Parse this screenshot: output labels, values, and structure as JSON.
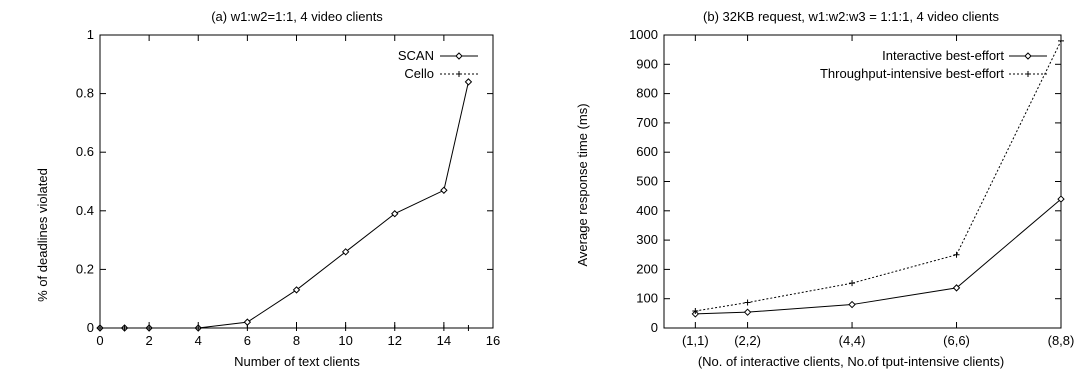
{
  "chart_data": [
    {
      "type": "line",
      "title": "(a) w1:w2=1:1, 4 video clients",
      "xlabel": "Number of text clients",
      "ylabel": "% of deadlines violated",
      "xlim": [
        0,
        16
      ],
      "ylim": [
        0,
        1
      ],
      "xticks": [
        "0",
        "2",
        "4",
        "6",
        "8",
        "10",
        "12",
        "14",
        "16"
      ],
      "yticks": [
        "0",
        "0.2",
        "0.4",
        "0.6",
        "0.8",
        "1"
      ],
      "legend_position": "top-right",
      "grid": false,
      "series": [
        {
          "name": "SCAN",
          "marker": "diamond",
          "line": "solid",
          "x": [
            0,
            1,
            2,
            4,
            6,
            8,
            10,
            12,
            14,
            15
          ],
          "y": [
            0,
            0,
            0,
            0,
            0.02,
            0.13,
            0.26,
            0.39,
            0.47,
            0.84
          ]
        },
        {
          "name": "Cello",
          "marker": "plus",
          "line": "dotted",
          "x": [
            0,
            1,
            2,
            4,
            6,
            8,
            10,
            12,
            14,
            15
          ],
          "y": [
            0,
            0,
            0,
            0,
            0,
            0,
            0,
            0,
            0,
            0
          ]
        }
      ]
    },
    {
      "type": "line",
      "title": "(b) 32KB request, w1:w2:w3 = 1:1:1, 4 video clients",
      "xlabel": "(No. of interactive clients, No.of tput-intensive clients)",
      "ylabel": "Average response time (ms)",
      "categories": [
        "(1,1)",
        "(2,2)",
        "(4,4)",
        "(6,6)",
        "(8,8)"
      ],
      "x": [
        1,
        2,
        4,
        6,
        8
      ],
      "xlim": [
        0.4,
        8
      ],
      "ylim": [
        0,
        1000
      ],
      "yticks": [
        "0",
        "100",
        "200",
        "300",
        "400",
        "500",
        "600",
        "700",
        "800",
        "900",
        "1000"
      ],
      "legend_position": "top-right",
      "grid": false,
      "series": [
        {
          "name": "Interactive best-effort",
          "marker": "diamond",
          "line": "solid",
          "values": [
            48,
            54,
            80,
            137,
            440
          ]
        },
        {
          "name": "Throughput-intensive best-effort",
          "marker": "plus",
          "line": "dotted",
          "values": [
            58,
            87,
            153,
            250,
            980
          ]
        }
      ]
    }
  ]
}
